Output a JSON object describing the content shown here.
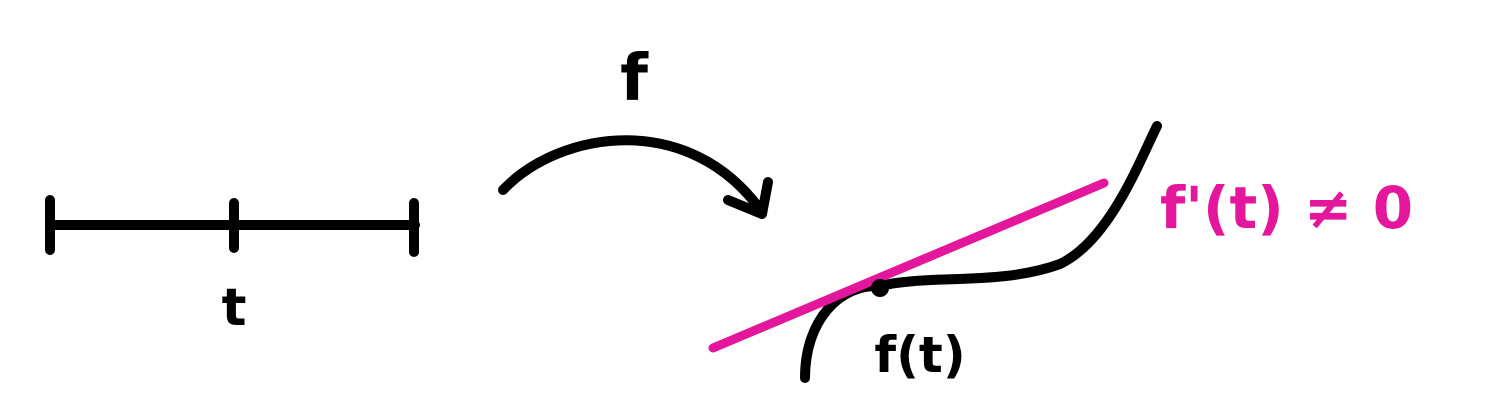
{
  "labels": {
    "domain_point": "t",
    "map_name": "f",
    "image_point": "f(t)",
    "derivative_condition": "f'(t) ≠ 0"
  },
  "colors": {
    "ink": "#000000",
    "highlight": "#e4169b",
    "background": "#ffffff"
  }
}
